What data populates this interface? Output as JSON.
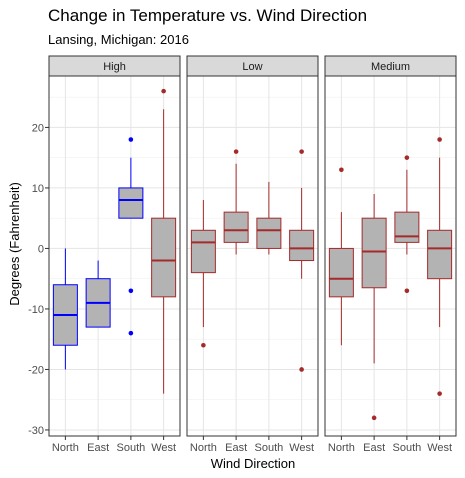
{
  "chart_data": {
    "type": "boxplot",
    "title": "Change in Temperature vs. Wind Direction",
    "subtitle": "Lansing, Michigan: 2016",
    "xlabel": "Wind Direction",
    "ylabel": "Degrees (Fahrenheit)",
    "ylim": [
      -31,
      28.5
    ],
    "yticks": [
      -30,
      -20,
      -10,
      0,
      10,
      20
    ],
    "grid": true,
    "categories": [
      "North",
      "East",
      "South",
      "West"
    ],
    "panels": [
      {
        "name": "High",
        "boxes": [
          {
            "category": "North",
            "color": "#0000ff",
            "fill": "#b3b3b3",
            "min": -20,
            "q1": -16,
            "median": -11,
            "q3": -6,
            "max": 0,
            "outliers": []
          },
          {
            "category": "East",
            "color": "#0000ff",
            "fill": "#b3b3b3",
            "min": -13,
            "q1": -13,
            "median": -9,
            "q3": -5,
            "max": -2,
            "outliers": []
          },
          {
            "category": "South",
            "color": "#0000ff",
            "fill": "#b3b3b3",
            "min": 5,
            "q1": 5,
            "median": 8,
            "q3": 10,
            "max": 15,
            "outliers": [
              18,
              -7,
              -14
            ]
          },
          {
            "category": "West",
            "color": "#a52a2a",
            "fill": "#b3b3b3",
            "min": -24,
            "q1": -8,
            "median": -2,
            "q3": 5,
            "max": 23,
            "outliers": [
              26
            ]
          }
        ]
      },
      {
        "name": "Low",
        "boxes": [
          {
            "category": "North",
            "color": "#a52a2a",
            "fill": "#b3b3b3",
            "min": -13,
            "q1": -4,
            "median": 1,
            "q3": 3,
            "max": 8,
            "outliers": [
              -16
            ]
          },
          {
            "category": "East",
            "color": "#a52a2a",
            "fill": "#b3b3b3",
            "min": -1,
            "q1": 1,
            "median": 3,
            "q3": 6,
            "max": 14,
            "outliers": [
              16
            ]
          },
          {
            "category": "South",
            "color": "#a52a2a",
            "fill": "#b3b3b3",
            "min": -1,
            "q1": 0,
            "median": 3,
            "q3": 5,
            "max": 11,
            "outliers": []
          },
          {
            "category": "West",
            "color": "#a52a2a",
            "fill": "#b3b3b3",
            "min": -5,
            "q1": -2,
            "median": 0,
            "q3": 3,
            "max": 10,
            "outliers": [
              16,
              -20
            ]
          }
        ]
      },
      {
        "name": "Medium",
        "boxes": [
          {
            "category": "North",
            "color": "#a52a2a",
            "fill": "#b3b3b3",
            "min": -16,
            "q1": -8,
            "median": -5,
            "q3": 0,
            "max": 6,
            "outliers": [
              13
            ]
          },
          {
            "category": "East",
            "color": "#a52a2a",
            "fill": "#b3b3b3",
            "min": -19,
            "q1": -6.5,
            "median": -0.5,
            "q3": 5,
            "max": 9,
            "outliers": [
              -28
            ]
          },
          {
            "category": "South",
            "color": "#a52a2a",
            "fill": "#b3b3b3",
            "min": -1,
            "q1": 1,
            "median": 2,
            "q3": 6,
            "max": 13,
            "outliers": [
              15,
              -7
            ]
          },
          {
            "category": "West",
            "color": "#a52a2a",
            "fill": "#b3b3b3",
            "min": -13,
            "q1": -5,
            "median": 0,
            "q3": 3,
            "max": 15,
            "outliers": [
              18,
              -24
            ]
          }
        ]
      }
    ]
  }
}
